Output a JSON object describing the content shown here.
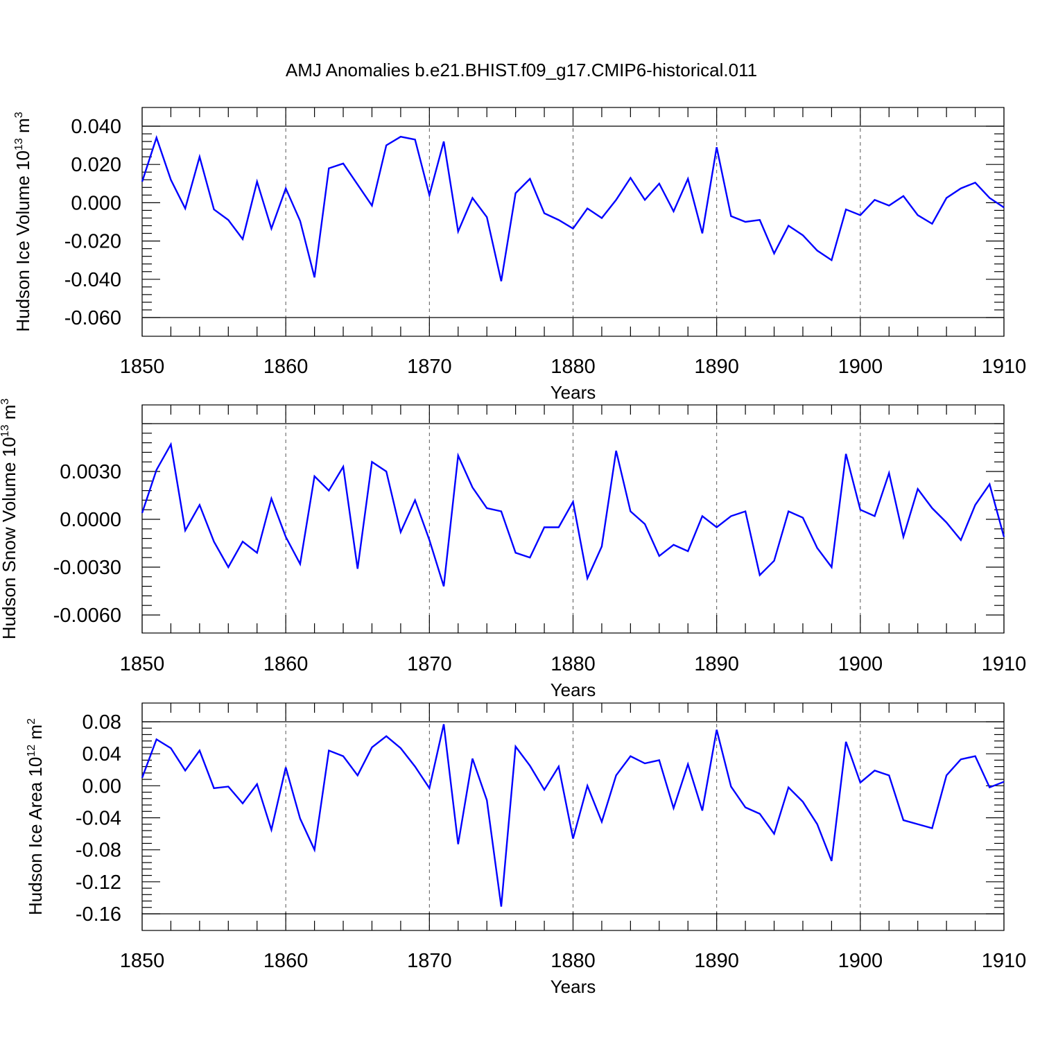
{
  "title": "AMJ Anomalies b.e21.BHIST.f09_g17.CMIP6-historical.011",
  "colors": {
    "line": "#0000ff",
    "grid": "#555555"
  },
  "chart_data": [
    {
      "type": "line",
      "xlabel": "Years",
      "ylabel": "Hudson Ice Volume 10",
      "ylabel_exp": "13",
      "ylabel_unit": " m",
      "ylabel_unit_exp": "3",
      "xlim": [
        1850,
        1910
      ],
      "ylim": [
        -0.06,
        0.04
      ],
      "xticks": [
        1850,
        1860,
        1870,
        1880,
        1890,
        1900,
        1910
      ],
      "xtick_labels": [
        "1850",
        "1860",
        "1870",
        "1880",
        "1890",
        "1900",
        "1910"
      ],
      "yticks": [
        0.04,
        0.02,
        0.0,
        -0.02,
        -0.04,
        -0.06
      ],
      "ytick_labels": [
        "0.040",
        "0.020",
        "0.000",
        "-0.020",
        "-0.040",
        "-0.060"
      ],
      "grid_x": true,
      "x": [
        1850,
        1851,
        1852,
        1853,
        1854,
        1855,
        1856,
        1857,
        1858,
        1859,
        1860,
        1861,
        1862,
        1863,
        1864,
        1865,
        1866,
        1867,
        1868,
        1869,
        1870,
        1871,
        1872,
        1873,
        1874,
        1875,
        1876,
        1877,
        1878,
        1879,
        1880,
        1881,
        1882,
        1883,
        1884,
        1885,
        1886,
        1887,
        1888,
        1889,
        1890,
        1891,
        1892,
        1893,
        1894,
        1895,
        1896,
        1897,
        1898,
        1899,
        1900,
        1901,
        1902,
        1903,
        1904,
        1905,
        1906,
        1907,
        1908,
        1909,
        1910
      ],
      "values": [
        0.011,
        0.034,
        0.012,
        -0.003,
        0.024,
        -0.0035,
        -0.009,
        -0.019,
        0.011,
        -0.0135,
        0.0075,
        -0.0095,
        -0.039,
        0.018,
        0.0205,
        0.0095,
        -0.0015,
        0.03,
        0.0345,
        0.033,
        0.004,
        0.032,
        -0.015,
        0.0025,
        -0.0075,
        -0.041,
        0.005,
        0.0125,
        -0.0055,
        -0.009,
        -0.0135,
        -0.003,
        -0.008,
        0.0015,
        0.013,
        0.0015,
        0.01,
        -0.0045,
        0.0125,
        -0.016,
        0.029,
        -0.007,
        -0.01,
        -0.009,
        -0.0265,
        -0.012,
        -0.017,
        -0.025,
        -0.03,
        -0.0035,
        -0.0065,
        0.0015,
        -0.0015,
        0.0035,
        -0.0065,
        -0.011,
        0.0025,
        0.0075,
        0.0105,
        0.0025,
        -0.0025
      ]
    },
    {
      "type": "line",
      "xlabel": "Years",
      "ylabel": "Hudson Snow Volume 10",
      "ylabel_exp": "13",
      "ylabel_unit": " m",
      "ylabel_unit_exp": "3",
      "xlim": [
        1850,
        1910
      ],
      "ylim": [
        -0.006,
        0.006
      ],
      "xticks": [
        1850,
        1860,
        1870,
        1880,
        1890,
        1900,
        1910
      ],
      "xtick_labels": [
        "1850",
        "1860",
        "1870",
        "1880",
        "1890",
        "1900",
        "1910"
      ],
      "yticks": [
        0.003,
        0.0,
        -0.003,
        -0.006
      ],
      "ytick_labels": [
        "0.0030",
        "0.0000",
        "-0.0030",
        "-0.0060"
      ],
      "grid_x": true,
      "x": [
        1850,
        1851,
        1852,
        1853,
        1854,
        1855,
        1856,
        1857,
        1858,
        1859,
        1860,
        1861,
        1862,
        1863,
        1864,
        1865,
        1866,
        1867,
        1868,
        1869,
        1870,
        1871,
        1872,
        1873,
        1874,
        1875,
        1876,
        1877,
        1878,
        1879,
        1880,
        1881,
        1882,
        1883,
        1884,
        1885,
        1886,
        1887,
        1888,
        1889,
        1890,
        1891,
        1892,
        1893,
        1894,
        1895,
        1896,
        1897,
        1898,
        1899,
        1900,
        1901,
        1902,
        1903,
        1904,
        1905,
        1906,
        1907,
        1908,
        1909,
        1910
      ],
      "values": [
        0.0004,
        0.0031,
        0.0047,
        -0.0007,
        0.0009,
        -0.0014,
        -0.003,
        -0.0014,
        -0.0021,
        0.0013,
        -0.0011,
        -0.0028,
        0.0027,
        0.0018,
        0.0033,
        -0.0031,
        0.0036,
        0.003,
        -0.0008,
        0.0012,
        -0.0013,
        -0.0042,
        0.004,
        0.002,
        0.0007,
        0.0005,
        -0.0021,
        -0.0024,
        -0.0005,
        -0.0005,
        0.0011,
        -0.0037,
        -0.0017,
        0.0043,
        0.0005,
        -0.0003,
        -0.0023,
        -0.0016,
        -0.002,
        0.0002,
        -0.0005,
        0.0002,
        0.0005,
        -0.0035,
        -0.0026,
        0.0005,
        0.0001,
        -0.0018,
        -0.003,
        0.0041,
        0.0006,
        0.0002,
        0.0029,
        -0.0011,
        0.0019,
        0.0007,
        -0.0002,
        -0.0013,
        0.0009,
        0.0022,
        -0.0011
      ]
    },
    {
      "type": "line",
      "xlabel": "Years",
      "ylabel": "Hudson Ice Area 10",
      "ylabel_exp": "12",
      "ylabel_unit": " m",
      "ylabel_unit_exp": "2",
      "xlim": [
        1850,
        1910
      ],
      "ylim": [
        -0.16,
        0.08
      ],
      "xticks": [
        1850,
        1860,
        1870,
        1880,
        1890,
        1900,
        1910
      ],
      "xtick_labels": [
        "1850",
        "1860",
        "1870",
        "1880",
        "1890",
        "1900",
        "1910"
      ],
      "yticks": [
        0.08,
        0.04,
        0.0,
        -0.04,
        -0.08,
        -0.12,
        -0.16
      ],
      "ytick_labels": [
        "0.08",
        "0.04",
        "0.00",
        "-0.04",
        "-0.08",
        "-0.12",
        "-0.16"
      ],
      "grid_x": true,
      "x": [
        1850,
        1851,
        1852,
        1853,
        1854,
        1855,
        1856,
        1857,
        1858,
        1859,
        1860,
        1861,
        1862,
        1863,
        1864,
        1865,
        1866,
        1867,
        1868,
        1869,
        1870,
        1871,
        1872,
        1873,
        1874,
        1875,
        1876,
        1877,
        1878,
        1879,
        1880,
        1881,
        1882,
        1883,
        1884,
        1885,
        1886,
        1887,
        1888,
        1889,
        1890,
        1891,
        1892,
        1893,
        1894,
        1895,
        1896,
        1897,
        1898,
        1899,
        1900,
        1901,
        1902,
        1903,
        1904,
        1905,
        1906,
        1907,
        1908,
        1909,
        1910
      ],
      "values": [
        0.01,
        0.058,
        0.047,
        0.019,
        0.044,
        -0.003,
        -0.001,
        -0.022,
        0.002,
        -0.055,
        0.023,
        -0.041,
        -0.08,
        0.044,
        0.037,
        0.013,
        0.048,
        0.062,
        0.047,
        0.024,
        -0.003,
        0.077,
        -0.073,
        0.034,
        -0.018,
        -0.151,
        0.049,
        0.025,
        -0.005,
        0.024,
        -0.066,
        0.0,
        -0.045,
        0.013,
        0.037,
        0.028,
        0.032,
        -0.028,
        0.027,
        -0.031,
        0.07,
        -0.001,
        -0.027,
        -0.035,
        -0.06,
        -0.002,
        -0.02,
        -0.048,
        -0.094,
        0.055,
        0.004,
        0.019,
        0.013,
        -0.043,
        -0.048,
        -0.053,
        0.013,
        0.033,
        0.037,
        -0.002,
        0.005
      ]
    }
  ]
}
